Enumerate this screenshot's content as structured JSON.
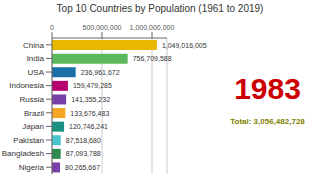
{
  "chart_data": {
    "type": "bar",
    "orientation": "horizontal",
    "title": "Top 10 Countries by Population (1961 to 2019)",
    "categories": [
      "China",
      "India",
      "USA",
      "Indonesia",
      "Russia",
      "Brazil",
      "Japan",
      "Pakistan",
      "Bangladesh",
      "Nigeria"
    ],
    "values": [
      1049016005,
      756709588,
      236961672,
      159479285,
      141355232,
      133676483,
      120746241,
      87518680,
      87093788,
      80265667
    ],
    "value_labels": [
      "1,049,016,005",
      "756,709,588",
      "236,961,672",
      "159,479,285",
      "141,355,232",
      "133,676,483",
      "120,746,241",
      "87,518,680",
      "87,093,788",
      "80,265,667"
    ],
    "data_labels": true,
    "colors": [
      "#E8B800",
      "#5CB85C",
      "#1A6FA8",
      "#B5006E",
      "#7B3FA8",
      "#F5A623",
      "#1A9080",
      "#45C4D0",
      "#2E8B4F",
      "#7B3FA8"
    ],
    "xlim": [
      0,
      1150000000
    ],
    "xticks": [
      0,
      {
        "value": 500000000,
        "label": "500,000,000"
      },
      {
        "value": 1000000000,
        "label": "1,000,000,000"
      }
    ],
    "grid": true,
    "annotations": [
      "1983",
      "Total: 3,056,482,728"
    ]
  }
}
